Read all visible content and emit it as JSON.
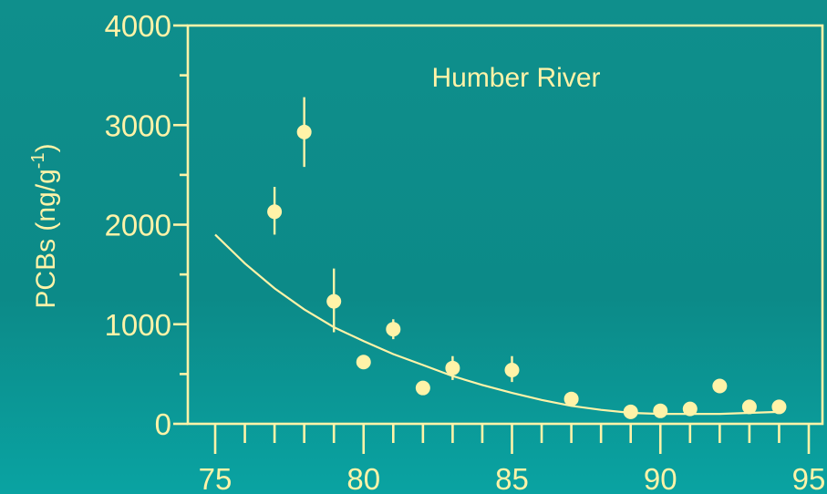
{
  "chart_data": {
    "type": "scatter",
    "title": "Humber River",
    "ylabel": "PCBs (ng/g",
    "ylabel_sup": "-1",
    "ylabel_close": ")",
    "xlabel": "",
    "xlim": [
      75,
      95
    ],
    "ylim": [
      0,
      4000
    ],
    "x_tick_labels": [
      "75",
      "80",
      "85",
      "90",
      "95"
    ],
    "y_tick_labels": [
      "0",
      "1000",
      "2000",
      "3000",
      "4000"
    ],
    "grid": false,
    "points": [
      {
        "x": 77,
        "y": 2130,
        "err_low": 1900,
        "err_high": 2380
      },
      {
        "x": 78,
        "y": 2930,
        "err_low": 2580,
        "err_high": 3280
      },
      {
        "x": 79,
        "y": 1230,
        "err_low": 920,
        "err_high": 1560
      },
      {
        "x": 80,
        "y": 620
      },
      {
        "x": 81,
        "y": 950,
        "err_low": 850,
        "err_high": 1050
      },
      {
        "x": 82,
        "y": 360
      },
      {
        "x": 83,
        "y": 560,
        "err_low": 440,
        "err_high": 680
      },
      {
        "x": 85,
        "y": 540,
        "err_low": 420,
        "err_high": 680
      },
      {
        "x": 87,
        "y": 250
      },
      {
        "x": 89,
        "y": 120
      },
      {
        "x": 90,
        "y": 130
      },
      {
        "x": 91,
        "y": 150
      },
      {
        "x": 92,
        "y": 380
      },
      {
        "x": 93,
        "y": 170
      },
      {
        "x": 94,
        "y": 170
      }
    ],
    "fit_curve": [
      [
        75,
        1900
      ],
      [
        76,
        1610
      ],
      [
        77,
        1360
      ],
      [
        78,
        1150
      ],
      [
        79,
        970
      ],
      [
        80,
        830
      ],
      [
        81,
        700
      ],
      [
        82,
        590
      ],
      [
        83,
        480
      ],
      [
        84,
        390
      ],
      [
        85,
        310
      ],
      [
        86,
        240
      ],
      [
        87,
        180
      ],
      [
        88,
        140
      ],
      [
        89,
        110
      ],
      [
        90,
        100
      ],
      [
        91,
        100
      ],
      [
        92,
        100
      ],
      [
        93,
        110
      ],
      [
        94,
        120
      ]
    ]
  }
}
